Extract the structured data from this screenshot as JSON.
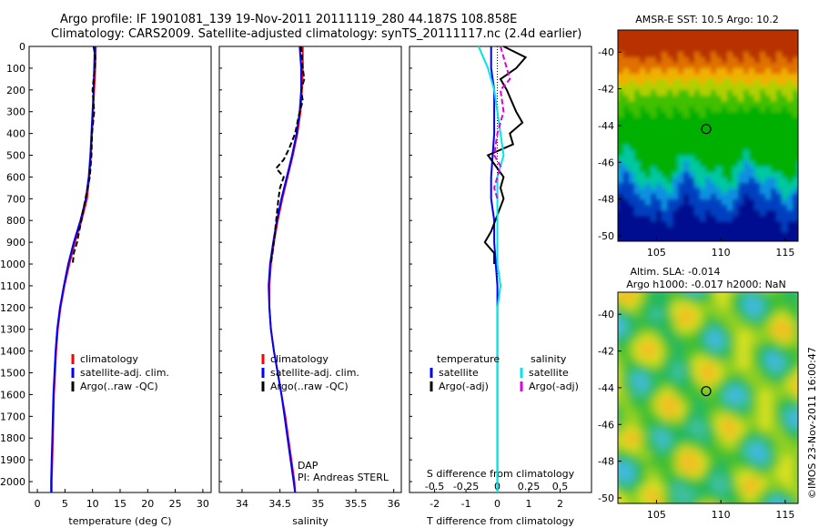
{
  "header": {
    "line1": "Argo profile: IF 1901081_139 19-Nov-2011 20111119_280 44.187S 108.858E",
    "line2": "Climatology: CARS2009. Satellite-adjusted climatology: synTS_20111117.nc (2.4d earlier)"
  },
  "colors": {
    "climatology": "#ff0000",
    "satellite": "#0000ff",
    "argo": "#000000",
    "s_satellite": "#00e5e5",
    "s_argo": "#e000e0"
  },
  "chart_data": [
    {
      "type": "line",
      "xlabel": "temperature (deg C)",
      "ylabel": "",
      "xlim": [
        -1.5,
        31.5
      ],
      "ylim": [
        2050,
        0
      ],
      "xticks": [
        0,
        5,
        10,
        15,
        20,
        25,
        30
      ],
      "yticks": [
        0,
        100,
        200,
        300,
        400,
        500,
        600,
        700,
        800,
        900,
        1000,
        1100,
        1200,
        1300,
        1400,
        1500,
        1600,
        1700,
        1800,
        1900,
        2000
      ],
      "legend": {
        "position": "lower-right",
        "entries": [
          "climatology",
          "satellite-adj. clim.",
          "Argo(..raw -QC)"
        ]
      },
      "series": [
        {
          "name": "climatology",
          "style": "solid",
          "points": [
            [
              10.6,
              0
            ],
            [
              10.5,
              100
            ],
            [
              10.3,
              200
            ],
            [
              10.1,
              300
            ],
            [
              9.9,
              400
            ],
            [
              9.7,
              500
            ],
            [
              9.4,
              600
            ],
            [
              9.0,
              700
            ],
            [
              8.0,
              800
            ],
            [
              6.8,
              900
            ],
            [
              5.8,
              1000
            ],
            [
              4.9,
              1100
            ],
            [
              4.2,
              1200
            ],
            [
              3.7,
              1300
            ],
            [
              3.4,
              1400
            ],
            [
              3.2,
              1500
            ],
            [
              3.0,
              1600
            ],
            [
              2.9,
              1700
            ],
            [
              2.8,
              1800
            ],
            [
              2.7,
              1900
            ],
            [
              2.6,
              2000
            ],
            [
              2.6,
              2050
            ]
          ]
        },
        {
          "name": "satellite-adj. clim.",
          "style": "solid",
          "points": [
            [
              10.4,
              0
            ],
            [
              10.3,
              100
            ],
            [
              10.2,
              200
            ],
            [
              10.0,
              300
            ],
            [
              9.8,
              400
            ],
            [
              9.6,
              500
            ],
            [
              9.3,
              600
            ],
            [
              8.8,
              700
            ],
            [
              7.8,
              800
            ],
            [
              6.6,
              900
            ],
            [
              5.6,
              1000
            ],
            [
              4.8,
              1100
            ],
            [
              4.1,
              1200
            ],
            [
              3.6,
              1300
            ],
            [
              3.3,
              1400
            ],
            [
              3.1,
              1500
            ],
            [
              2.9,
              1600
            ],
            [
              2.8,
              1700
            ],
            [
              2.7,
              1800
            ],
            [
              2.6,
              1900
            ],
            [
              2.5,
              2000
            ],
            [
              2.5,
              2050
            ]
          ]
        },
        {
          "name": "Argo(..raw -QC)",
          "style": "dashed",
          "points": [
            [
              10.2,
              0
            ],
            [
              10.5,
              50
            ],
            [
              10.4,
              100
            ],
            [
              10.0,
              200
            ],
            [
              10.3,
              300
            ],
            [
              9.9,
              400
            ],
            [
              9.8,
              500
            ],
            [
              9.5,
              600
            ],
            [
              9.1,
              650
            ],
            [
              7.2,
              900
            ],
            [
              6.6,
              950
            ],
            [
              6.4,
              1000
            ]
          ]
        }
      ]
    },
    {
      "type": "line",
      "xlabel": "salinity",
      "ylabel": "",
      "xlim": [
        33.7,
        36.1
      ],
      "ylim": [
        2050,
        0
      ],
      "xticks": [
        34,
        34.5,
        35,
        35.5,
        36
      ],
      "xticklabels": [
        "34",
        "34.5",
        "35",
        "35.5",
        "36"
      ],
      "legend": {
        "position": "lower-right",
        "entries": [
          "climatology",
          "satellite-adj. clim.",
          "Argo(..raw -QC)"
        ]
      },
      "annotations": [
        "DAP",
        "PI: Andreas STERL"
      ],
      "series": [
        {
          "name": "climatology",
          "style": "solid",
          "points": [
            [
              34.8,
              0
            ],
            [
              34.8,
              100
            ],
            [
              34.79,
              200
            ],
            [
              34.77,
              300
            ],
            [
              34.73,
              400
            ],
            [
              34.67,
              500
            ],
            [
              34.6,
              600
            ],
            [
              34.53,
              700
            ],
            [
              34.47,
              800
            ],
            [
              34.42,
              900
            ],
            [
              34.38,
              1000
            ],
            [
              34.36,
              1100
            ],
            [
              34.36,
              1200
            ],
            [
              34.38,
              1300
            ],
            [
              34.42,
              1400
            ],
            [
              34.47,
              1500
            ],
            [
              34.52,
              1600
            ],
            [
              34.57,
              1700
            ],
            [
              34.61,
              1800
            ],
            [
              34.65,
              1900
            ],
            [
              34.69,
              2000
            ],
            [
              34.7,
              2050
            ]
          ]
        },
        {
          "name": "satellite-adj. clim.",
          "style": "solid",
          "points": [
            [
              34.76,
              0
            ],
            [
              34.78,
              100
            ],
            [
              34.78,
              200
            ],
            [
              34.76,
              300
            ],
            [
              34.72,
              400
            ],
            [
              34.66,
              500
            ],
            [
              34.59,
              600
            ],
            [
              34.52,
              700
            ],
            [
              34.46,
              800
            ],
            [
              34.41,
              900
            ],
            [
              34.37,
              1000
            ],
            [
              34.35,
              1100
            ],
            [
              34.36,
              1200
            ],
            [
              34.38,
              1300
            ],
            [
              34.42,
              1400
            ],
            [
              34.47,
              1500
            ],
            [
              34.52,
              1600
            ],
            [
              34.56,
              1700
            ],
            [
              34.6,
              1800
            ],
            [
              34.64,
              1900
            ],
            [
              34.68,
              2000
            ],
            [
              34.7,
              2050
            ]
          ]
        },
        {
          "name": "Argo(..raw -QC)",
          "style": "dashed",
          "points": [
            [
              34.78,
              0
            ],
            [
              34.8,
              100
            ],
            [
              34.82,
              150
            ],
            [
              34.78,
              200
            ],
            [
              34.8,
              250
            ],
            [
              34.76,
              300
            ],
            [
              34.7,
              400
            ],
            [
              34.62,
              470
            ],
            [
              34.55,
              520
            ],
            [
              34.45,
              560
            ],
            [
              34.55,
              600
            ],
            [
              34.5,
              650
            ],
            [
              34.48,
              700
            ],
            [
              34.45,
              800
            ],
            [
              34.42,
              900
            ],
            [
              34.38,
              1000
            ]
          ]
        }
      ]
    },
    {
      "type": "line",
      "xlabel": "T difference from climatology",
      "xlabel2": "S difference from climatology",
      "ylabel": "",
      "xlim": [
        -2.8,
        3.0
      ],
      "ylim": [
        2050,
        0
      ],
      "xticks": [
        -2,
        -1,
        0,
        1,
        2
      ],
      "xticks2": [
        "-0.5",
        "-0.25",
        "0",
        "0.25",
        "0.5"
      ],
      "legend": {
        "position": "lower-center",
        "headers": [
          "temperature",
          "salinity"
        ],
        "entries": [
          "satellite",
          "Argo(-adj)",
          "satellite",
          "Argo(-adj)"
        ]
      },
      "series": [
        {
          "name": "temperature satellite",
          "style": "solid",
          "points": [
            [
              -0.2,
              0
            ],
            [
              -0.2,
              100
            ],
            [
              -0.1,
              200
            ],
            [
              -0.1,
              300
            ],
            [
              -0.1,
              400
            ],
            [
              -0.15,
              500
            ],
            [
              -0.2,
              600
            ],
            [
              -0.2,
              700
            ],
            [
              -0.1,
              800
            ],
            [
              -0.1,
              900
            ],
            [
              -0.05,
              1000
            ],
            [
              0,
              1100
            ],
            [
              0,
              1200
            ],
            [
              0,
              1400
            ],
            [
              0,
              1600
            ],
            [
              0,
              1800
            ],
            [
              0,
              2000
            ],
            [
              0,
              2050
            ]
          ]
        },
        {
          "name": "temperature Argo(-adj)",
          "style": "solid",
          "points": [
            [
              0.2,
              0
            ],
            [
              0.9,
              50
            ],
            [
              0.6,
              100
            ],
            [
              0.1,
              150
            ],
            [
              0.3,
              200
            ],
            [
              0.6,
              300
            ],
            [
              0.8,
              350
            ],
            [
              0.4,
              400
            ],
            [
              0.5,
              450
            ],
            [
              -0.3,
              500
            ],
            [
              0.2,
              600
            ],
            [
              0.1,
              650
            ],
            [
              0.2,
              700
            ],
            [
              -0.2,
              850
            ],
            [
              -0.4,
              900
            ],
            [
              -0.1,
              950
            ],
            [
              -0.1,
              1000
            ]
          ]
        },
        {
          "name": "salinity satellite",
          "style": "solid",
          "points": [
            [
              -0.6,
              0
            ],
            [
              -0.3,
              100
            ],
            [
              -0.1,
              200
            ],
            [
              0,
              300
            ],
            [
              0.1,
              400
            ],
            [
              0.2,
              500
            ],
            [
              0,
              600
            ],
            [
              0,
              800
            ],
            [
              0,
              1000
            ],
            [
              0.1,
              1100
            ],
            [
              0,
              1200
            ],
            [
              0,
              1600
            ],
            [
              0,
              2000
            ],
            [
              0,
              2050
            ]
          ]
        },
        {
          "name": "salinity Argo(-adj)",
          "style": "dashed",
          "points": [
            [
              0.1,
              0
            ],
            [
              0.3,
              100
            ],
            [
              0.4,
              150
            ],
            [
              0.1,
              200
            ],
            [
              0.2,
              300
            ],
            [
              0,
              400
            ],
            [
              -0.1,
              500
            ],
            [
              0.1,
              550
            ],
            [
              -0.1,
              650
            ],
            [
              0,
              700
            ]
          ]
        }
      ]
    },
    {
      "type": "heatmap",
      "title": "AMSR-E SST: 10.5 Argo: 10.2",
      "xlim": [
        102,
        116
      ],
      "ylim": [
        -50.3,
        -38.8
      ],
      "xticks": [
        105,
        110,
        115
      ],
      "yticks": [
        -40,
        -42,
        -44,
        -46,
        -48,
        -50
      ],
      "marker": {
        "x": 108.858,
        "y": -44.187
      }
    },
    {
      "type": "heatmap",
      "title": "Altim. SLA: -0.014",
      "subtitle": "Argo h1000: -0.017 h2000: NaN",
      "xlim": [
        102,
        116
      ],
      "ylim": [
        -50.3,
        -38.8
      ],
      "xticks": [
        105,
        110,
        115
      ],
      "yticks": [
        -40,
        -42,
        -44,
        -46,
        -48,
        -50
      ],
      "marker": {
        "x": 108.858,
        "y": -44.187
      }
    }
  ],
  "credit": "©IMOS 23-Nov-2011 16:00:47"
}
